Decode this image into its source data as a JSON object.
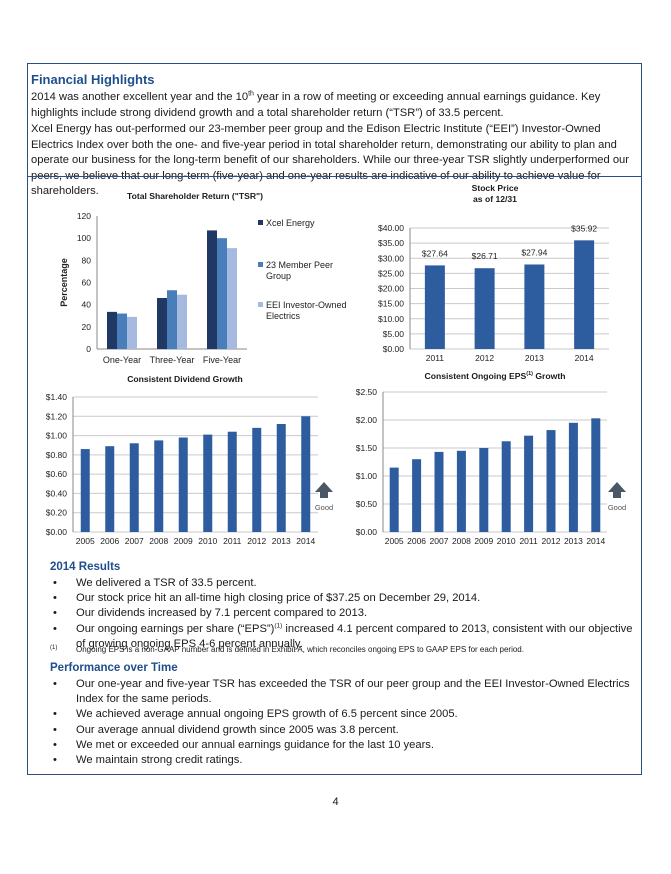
{
  "heading": "Financial Highlights",
  "intro": {
    "p1_a": "2014 was another excellent year and the 10",
    "p1_sup": "th",
    "p1_b": " year in a row of meeting or exceeding annual earnings guidance. Key highlights include strong dividend growth and a total shareholder return (“TSR”) of 33.5 percent.",
    "p2": "Xcel Energy has out-performed our 23-member peer group and the Edison Electric Institute (“EEI”) Investor-Owned Electrics Index over both the one- and five-year period in total shareholder return, demonstrating our ability to plan and operate our business for the long-term benefit of our shareholders. While our three-year TSR slightly underperformed our peers, we believe that our long-term (five-year) and one-year results are indicative of our ability to achieve value for shareholders."
  },
  "good_label": "Good",
  "colors": {
    "accent": "#1f4e8c",
    "dark_bar": "#1f3864",
    "mid_bar": "#4a7ebb",
    "light_bar": "#a6b9df",
    "bar": "#2e5d9f",
    "arrow": "#4a5866"
  },
  "chart_data": [
    {
      "type": "bar",
      "title": "Total Shareholder Return (\"TSR\")",
      "ylabel": "Percentage",
      "categories": [
        "One-Year",
        "Three-Year",
        "Five-Year"
      ],
      "series": [
        {
          "name": "Xcel Energy",
          "values": [
            33.5,
            46,
            107
          ]
        },
        {
          "name": "23 Member Peer Group",
          "values": [
            32,
            53,
            100
          ]
        },
        {
          "name": "EEI Investor-Owned Electrics",
          "values": [
            29,
            49,
            91
          ]
        }
      ],
      "yticks": [
        "0",
        "20",
        "40",
        "60",
        "80",
        "100",
        "120"
      ],
      "ylim": [
        0,
        120
      ],
      "legend": "right"
    },
    {
      "type": "bar",
      "title": "Stock Price",
      "subtitle": "as of 12/31",
      "categories": [
        "2011",
        "2012",
        "2013",
        "2014"
      ],
      "values": [
        27.64,
        26.71,
        27.94,
        35.92
      ],
      "labels": [
        "$27.64",
        "$26.71",
        "$27.94",
        "$35.92"
      ],
      "yticks": [
        "$0.00",
        "$5.00",
        "$10.00",
        "$15.00",
        "$20.00",
        "$25.00",
        "$30.00",
        "$35.00",
        "$40.00"
      ],
      "ylim": [
        0,
        40
      ]
    },
    {
      "type": "bar",
      "title": "Consistent Dividend Growth",
      "categories": [
        "2005",
        "2006",
        "2007",
        "2008",
        "2009",
        "2010",
        "2011",
        "2012",
        "2013",
        "2014"
      ],
      "values": [
        0.86,
        0.89,
        0.92,
        0.95,
        0.98,
        1.01,
        1.04,
        1.08,
        1.12,
        1.2
      ],
      "yticks": [
        "$0.00",
        "$0.20",
        "$0.40",
        "$0.60",
        "$0.80",
        "$1.00",
        "$1.20",
        "$1.40"
      ],
      "ylim": [
        0,
        1.4
      ]
    },
    {
      "type": "bar",
      "title": "Consistent Ongoing EPS",
      "title_sup": "(1)",
      "title_suffix": " Growth",
      "categories": [
        "2005",
        "2006",
        "2007",
        "2008",
        "2009",
        "2010",
        "2011",
        "2012",
        "2013",
        "2014"
      ],
      "values": [
        1.15,
        1.3,
        1.43,
        1.45,
        1.5,
        1.62,
        1.72,
        1.82,
        1.95,
        2.03
      ],
      "yticks": [
        "$0.00",
        "$0.50",
        "$1.00",
        "$1.50",
        "$2.00",
        "$2.50"
      ],
      "ylim": [
        0,
        2.5
      ]
    }
  ],
  "results": {
    "title": "2014 Results",
    "b1": "We delivered a TSR of 33.5 percent.",
    "b2": "Our stock price hit an all-time high closing price of $37.25 on December 29, 2014.",
    "b3": "Our dividends increased by 7.1 percent compared to 2013.",
    "b4_a": "Our ongoing earnings per share (“EPS”)",
    "b4_sup": "(1)",
    "b4_b": " increased 4.1 percent compared to 2013, consistent with our objective of growing ongoing EPS 4-6 percent annually.",
    "fn_mark": "(1)",
    "fn_text": "Ongoing EPS is a non-GAAP number and is defined in Exhibit A, which reconciles ongoing EPS to GAAP EPS for each period."
  },
  "performance": {
    "title": "Performance over Time",
    "b1": "Our one-year and five-year TSR has exceeded the TSR of our peer group and the EEI Investor-Owned Electrics Index for the same periods.",
    "b2": "We achieved average annual ongoing EPS growth of 6.5 percent since 2005.",
    "b3": "Our average annual dividend growth since 2005 was 3.8 percent.",
    "b4": "We met or exceeded our annual earnings guidance for the last 10 years.",
    "b5": "We maintain strong credit ratings."
  },
  "page_number": "4"
}
